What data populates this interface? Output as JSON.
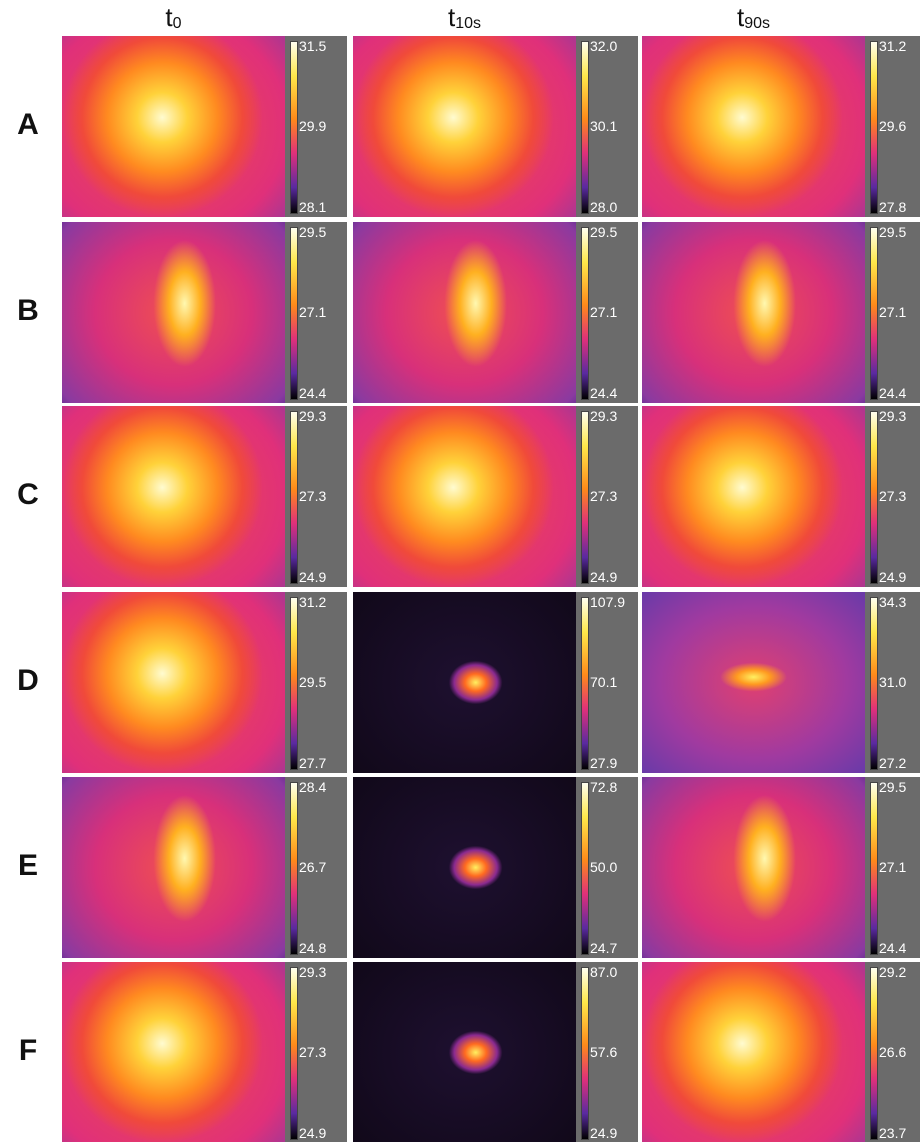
{
  "columns": [
    {
      "base": "t",
      "sub": "0"
    },
    {
      "base": "t",
      "sub": "10s"
    },
    {
      "base": "t",
      "sub": "90s"
    }
  ],
  "rows": [
    {
      "label": "A",
      "cells": [
        {
          "max": "31.5",
          "mid": "29.9",
          "min": "28.1"
        },
        {
          "max": "32.0",
          "mid": "30.1",
          "min": "28.0"
        },
        {
          "max": "31.2",
          "mid": "29.6",
          "min": "27.8"
        }
      ]
    },
    {
      "label": "B",
      "cells": [
        {
          "max": "29.5",
          "mid": "27.1",
          "min": "24.4"
        },
        {
          "max": "29.5",
          "mid": "27.1",
          "min": "24.4"
        },
        {
          "max": "29.5",
          "mid": "27.1",
          "min": "24.4"
        }
      ]
    },
    {
      "label": "C",
      "cells": [
        {
          "max": "29.3",
          "mid": "27.3",
          "min": "24.9"
        },
        {
          "max": "29.3",
          "mid": "27.3",
          "min": "24.9"
        },
        {
          "max": "29.3",
          "mid": "27.3",
          "min": "24.9"
        }
      ]
    },
    {
      "label": "D",
      "cells": [
        {
          "max": "31.2",
          "mid": "29.5",
          "min": "27.7"
        },
        {
          "max": "107.9",
          "mid": "70.1",
          "min": "27.9"
        },
        {
          "max": "34.3",
          "mid": "31.0",
          "min": "27.2"
        }
      ]
    },
    {
      "label": "E",
      "cells": [
        {
          "max": "28.4",
          "mid": "26.7",
          "min": "24.8"
        },
        {
          "max": "72.8",
          "mid": "50.0",
          "min": "24.7"
        },
        {
          "max": "29.5",
          "mid": "27.1",
          "min": "24.4"
        }
      ]
    },
    {
      "label": "F",
      "cells": [
        {
          "max": "29.3",
          "mid": "27.3",
          "min": "24.9"
        },
        {
          "max": "87.0",
          "mid": "57.6",
          "min": "24.9"
        },
        {
          "max": "29.2",
          "mid": "26.6",
          "min": "23.7"
        }
      ]
    }
  ]
}
